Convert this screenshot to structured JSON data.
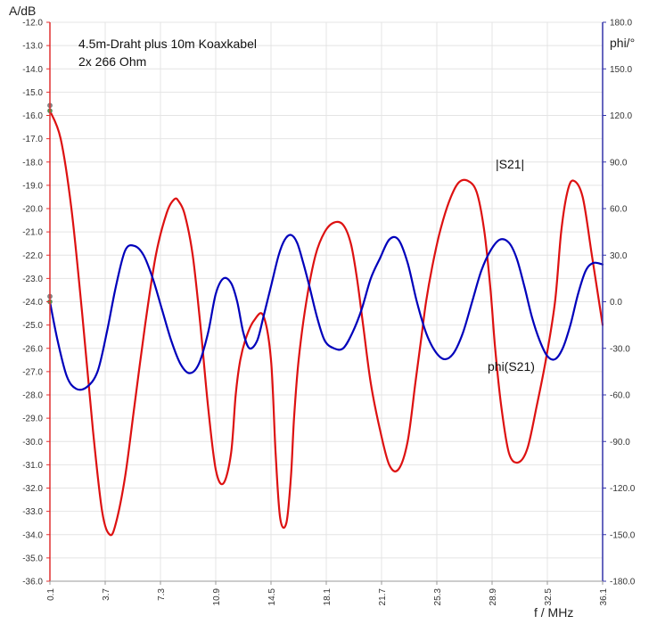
{
  "chart_data": {
    "type": "line",
    "annotations": [
      "4.5m-Draht plus 10m Koaxkabel",
      "2x 266 Ohm"
    ],
    "xlabel": "f / MHz",
    "ylabel_left": "A/dB",
    "ylabel_right": "phi/°",
    "xlim": [
      0.1,
      36.1
    ],
    "ylim_left": [
      -36.0,
      -12.0
    ],
    "ylim_right": [
      -180.0,
      180.0
    ],
    "x_ticks": [
      "0.1",
      "3.7",
      "7.3",
      "10.9",
      "14.5",
      "18.1",
      "21.7",
      "25.3",
      "28.9",
      "32.5",
      "36.1"
    ],
    "y_left_ticks": [
      "-12.0",
      "-13.0",
      "-14.0",
      "-15.0",
      "-16.0",
      "-17.0",
      "-18.0",
      "-19.0",
      "-20.0",
      "-21.0",
      "-22.0",
      "-23.0",
      "-24.0",
      "-25.0",
      "-26.0",
      "-27.0",
      "-28.0",
      "-29.0",
      "-30.0",
      "-31.0",
      "-32.0",
      "-33.0",
      "-34.0",
      "-35.0",
      "-36.0"
    ],
    "y_right_ticks": [
      "180.0",
      "150.0",
      "120.0",
      "90.0",
      "60.0",
      "30.0",
      "0.0",
      "-30.0",
      "-60.0",
      "-90.0",
      "-120.0",
      "-150.0",
      "-180.0"
    ],
    "grid": true,
    "series": [
      {
        "name": "|S21|",
        "axis": "left",
        "color": "#dd1111",
        "x": [
          0.1,
          0.8,
          1.5,
          2.2,
          2.9,
          3.5,
          4.0,
          4.4,
          5.0,
          5.6,
          6.3,
          7.0,
          7.7,
          8.2,
          8.5,
          8.9,
          9.4,
          9.9,
          10.4,
          10.9,
          11.4,
          11.9,
          12.2,
          12.5,
          12.9,
          13.4,
          14.0,
          14.5,
          14.8,
          15.1,
          15.5,
          15.8,
          16.0,
          16.3,
          16.8,
          17.4,
          18.0,
          18.6,
          19.2,
          19.7,
          20.1,
          20.5,
          21.0,
          21.6,
          22.2,
          22.8,
          23.4,
          23.9,
          24.3,
          24.6,
          25.0,
          25.5,
          26.1,
          26.7,
          27.3,
          27.9,
          28.4,
          28.8,
          29.1,
          29.5,
          30.0,
          30.6,
          31.2,
          31.8,
          32.4,
          33.0,
          33.4,
          33.8,
          34.2,
          34.8,
          35.4,
          36.1
        ],
        "values": [
          -15.8,
          -17.0,
          -20.0,
          -24.5,
          -29.5,
          -33.0,
          -34.0,
          -33.5,
          -31.5,
          -28.5,
          -25.0,
          -22.0,
          -20.2,
          -19.6,
          -19.7,
          -20.3,
          -22.0,
          -25.0,
          -28.5,
          -31.2,
          -31.8,
          -30.5,
          -28.0,
          -26.5,
          -25.5,
          -24.8,
          -24.6,
          -26.5,
          -30.5,
          -33.3,
          -33.5,
          -31.5,
          -29.0,
          -26.5,
          -24.0,
          -22.0,
          -21.0,
          -20.6,
          -20.7,
          -21.5,
          -23.0,
          -25.0,
          -27.5,
          -29.5,
          -31.0,
          -31.2,
          -30.0,
          -27.5,
          -25.5,
          -24.0,
          -22.5,
          -21.0,
          -19.7,
          -18.9,
          -18.8,
          -19.3,
          -21.0,
          -23.5,
          -26.0,
          -28.5,
          -30.5,
          -30.9,
          -30.3,
          -28.5,
          -26.5,
          -24.0,
          -21.0,
          -19.3,
          -18.8,
          -19.5,
          -22.0,
          -25.0
        ]
      },
      {
        "name": "phi(S21)",
        "axis": "right",
        "color": "#0000bb",
        "x": [
          0.1,
          0.6,
          1.2,
          1.8,
          2.5,
          3.2,
          3.8,
          4.4,
          5.0,
          5.6,
          6.2,
          6.8,
          7.4,
          8.0,
          8.6,
          9.2,
          9.8,
          10.4,
          10.9,
          11.4,
          11.9,
          12.3,
          12.7,
          13.1,
          13.6,
          14.0,
          14.5,
          15.0,
          15.4,
          15.8,
          16.2,
          16.6,
          17.0,
          17.5,
          18.0,
          18.6,
          19.2,
          19.8,
          20.4,
          21.0,
          21.6,
          22.2,
          22.8,
          23.4,
          24.0,
          24.6,
          25.2,
          25.8,
          26.4,
          27.0,
          27.6,
          28.2,
          28.8,
          29.4,
          30.0,
          30.5,
          31.0,
          31.5,
          32.0,
          32.5,
          33.0,
          33.5,
          34.0,
          34.5,
          35.0,
          35.5,
          36.1
        ],
        "values": [
          0.0,
          -25.0,
          -48.0,
          -56.0,
          -55.0,
          -45.0,
          -20.0,
          10.0,
          33.0,
          36.0,
          30.0,
          15.0,
          -5.0,
          -25.0,
          -40.0,
          -46.0,
          -40.0,
          -20.0,
          5.0,
          15.0,
          12.0,
          0.0,
          -20.0,
          -30.0,
          -25.0,
          -10.0,
          10.0,
          30.0,
          40.0,
          43.0,
          38.0,
          25.0,
          10.0,
          -10.0,
          -25.0,
          -30.0,
          -30.0,
          -20.0,
          -5.0,
          15.0,
          28.0,
          40.0,
          40.0,
          25.0,
          0.0,
          -20.0,
          -32.0,
          -37.0,
          -33.0,
          -20.0,
          0.0,
          20.0,
          33.0,
          40.0,
          38.0,
          28.0,
          10.0,
          -10.0,
          -25.0,
          -35.0,
          -37.0,
          -30.0,
          -15.0,
          5.0,
          20.0,
          25.0,
          24.0
        ]
      }
    ]
  }
}
